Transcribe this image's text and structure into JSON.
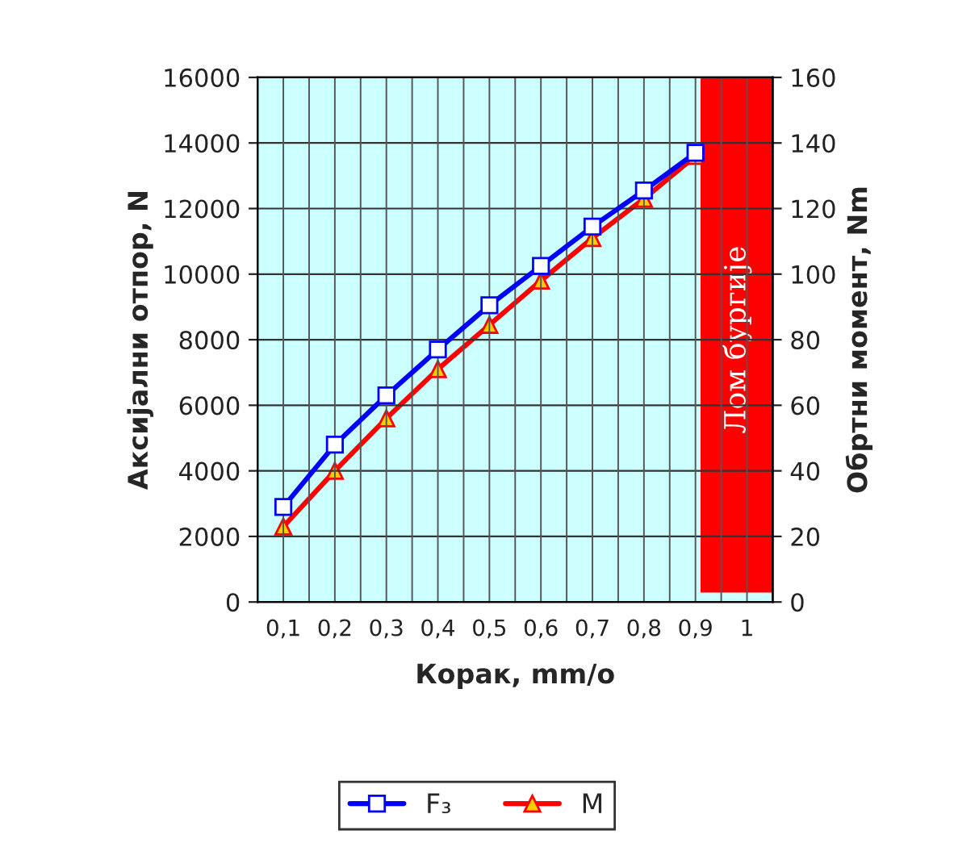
{
  "chart_data": {
    "type": "line",
    "categories": [
      "0,1",
      "0,2",
      "0,3",
      "0,4",
      "0,5",
      "0,6",
      "0,7",
      "0,8",
      "0,9",
      "1"
    ],
    "series": [
      {
        "name": "F₃",
        "color": "#0000ff",
        "marker": "square",
        "values": [
          2900,
          4800,
          6300,
          7700,
          9050,
          10250,
          11450,
          12550,
          13700,
          null
        ]
      },
      {
        "name": "M",
        "color": "#ff0000",
        "marker": "triangle",
        "axis": "y2",
        "values": [
          23,
          40,
          56,
          71,
          84.5,
          98,
          111,
          123,
          136,
          null
        ]
      }
    ],
    "xlabel": "Корак, mm/o",
    "ylabel": "Аксијални отпор, N",
    "y2label": "Обртни момент, Nm",
    "ylim": [
      0,
      16000
    ],
    "yticks": [
      0,
      2000,
      4000,
      6000,
      8000,
      10000,
      12000,
      14000,
      16000
    ],
    "y2lim": [
      0,
      160
    ],
    "y2ticks": [
      0,
      20,
      40,
      60,
      80,
      100,
      120,
      140,
      160
    ],
    "bands": [
      {
        "axis": "x",
        "from": "0,9",
        "to": "1",
        "label": "Лом бургије",
        "color": "#ff0000"
      }
    ],
    "grid": true,
    "legend": "bottom",
    "line_style": "solid"
  }
}
